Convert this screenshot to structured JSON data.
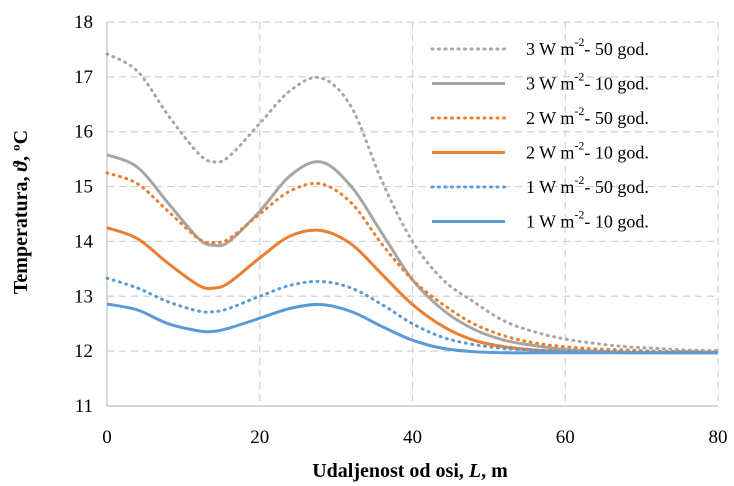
{
  "chart_data": {
    "type": "line",
    "xlabel": {
      "prefix": "Udaljenost od osi, ",
      "var": "L",
      "suffix": ", m"
    },
    "ylabel": {
      "prefix": "Temperatura, ",
      "var": "ϑ",
      "suffix": ", ºC"
    },
    "xlim": [
      0,
      80
    ],
    "ylim": [
      11,
      18
    ],
    "xticks": [
      "0",
      "20",
      "40",
      "60",
      "80"
    ],
    "yticks": [
      "11",
      "12",
      "13",
      "14",
      "15",
      "16",
      "17",
      "18"
    ],
    "grid": true,
    "legend_position": "top-right",
    "x": [
      0,
      4,
      8,
      12,
      14,
      16,
      20,
      24,
      28,
      32,
      36,
      40,
      44,
      48,
      52,
      56,
      60,
      64,
      68,
      72,
      76,
      80
    ],
    "series": [
      {
        "name": {
          "pre": "3 W m",
          "sup": "-2",
          "post": "- 50 god."
        },
        "color": "#a6a6a6",
        "dash": "dotted",
        "values": [
          17.42,
          17.1,
          16.3,
          15.6,
          15.45,
          15.55,
          16.15,
          16.75,
          16.98,
          16.45,
          15.1,
          14.0,
          13.3,
          12.9,
          12.55,
          12.35,
          12.22,
          12.14,
          12.08,
          12.05,
          12.02,
          12.01
        ]
      },
      {
        "name": {
          "pre": "3 W m",
          "sup": "-2",
          "post": "- 10 god."
        },
        "color": "#a6a6a6",
        "dash": "solid",
        "values": [
          15.58,
          15.35,
          14.7,
          14.05,
          13.93,
          14.0,
          14.55,
          15.2,
          15.45,
          15.0,
          14.15,
          13.3,
          12.75,
          12.4,
          12.2,
          12.1,
          12.03,
          12.0,
          11.98,
          11.97,
          11.97,
          11.97
        ]
      },
      {
        "name": {
          "pre": "2 W m",
          "sup": "-2",
          "post": "- 50 god."
        },
        "color": "#ed7d31",
        "dash": "dotted",
        "values": [
          15.25,
          15.05,
          14.55,
          14.05,
          13.98,
          14.05,
          14.5,
          14.92,
          15.05,
          14.7,
          13.95,
          13.3,
          12.85,
          12.5,
          12.28,
          12.15,
          12.08,
          12.04,
          12.02,
          12.0,
          11.99,
          11.98
        ]
      },
      {
        "name": {
          "pre": "2 W m",
          "sup": "-2",
          "post": "- 10 god."
        },
        "color": "#ed7d31",
        "dash": "solid",
        "values": [
          14.25,
          14.05,
          13.6,
          13.2,
          13.15,
          13.25,
          13.7,
          14.1,
          14.2,
          13.95,
          13.4,
          12.85,
          12.45,
          12.2,
          12.08,
          12.02,
          11.99,
          11.98,
          11.97,
          11.97,
          11.97,
          11.97
        ]
      },
      {
        "name": {
          "pre": "1 W m",
          "sup": "-2",
          "post": "- 50 god."
        },
        "color": "#5b9bd5",
        "dash": "dotted",
        "values": [
          13.33,
          13.15,
          12.9,
          12.73,
          12.72,
          12.78,
          13.0,
          13.2,
          13.27,
          13.15,
          12.85,
          12.5,
          12.25,
          12.12,
          12.05,
          12.02,
          12.0,
          11.99,
          11.98,
          11.98,
          11.97,
          11.97
        ]
      },
      {
        "name": {
          "pre": "1 W m",
          "sup": "-2",
          "post": "- 10 god."
        },
        "color": "#5b9bd5",
        "dash": "solid",
        "values": [
          12.86,
          12.75,
          12.5,
          12.37,
          12.36,
          12.42,
          12.6,
          12.78,
          12.85,
          12.72,
          12.45,
          12.2,
          12.05,
          11.99,
          11.97,
          11.97,
          11.97,
          11.97,
          11.97,
          11.97,
          11.97,
          11.97
        ]
      }
    ]
  }
}
